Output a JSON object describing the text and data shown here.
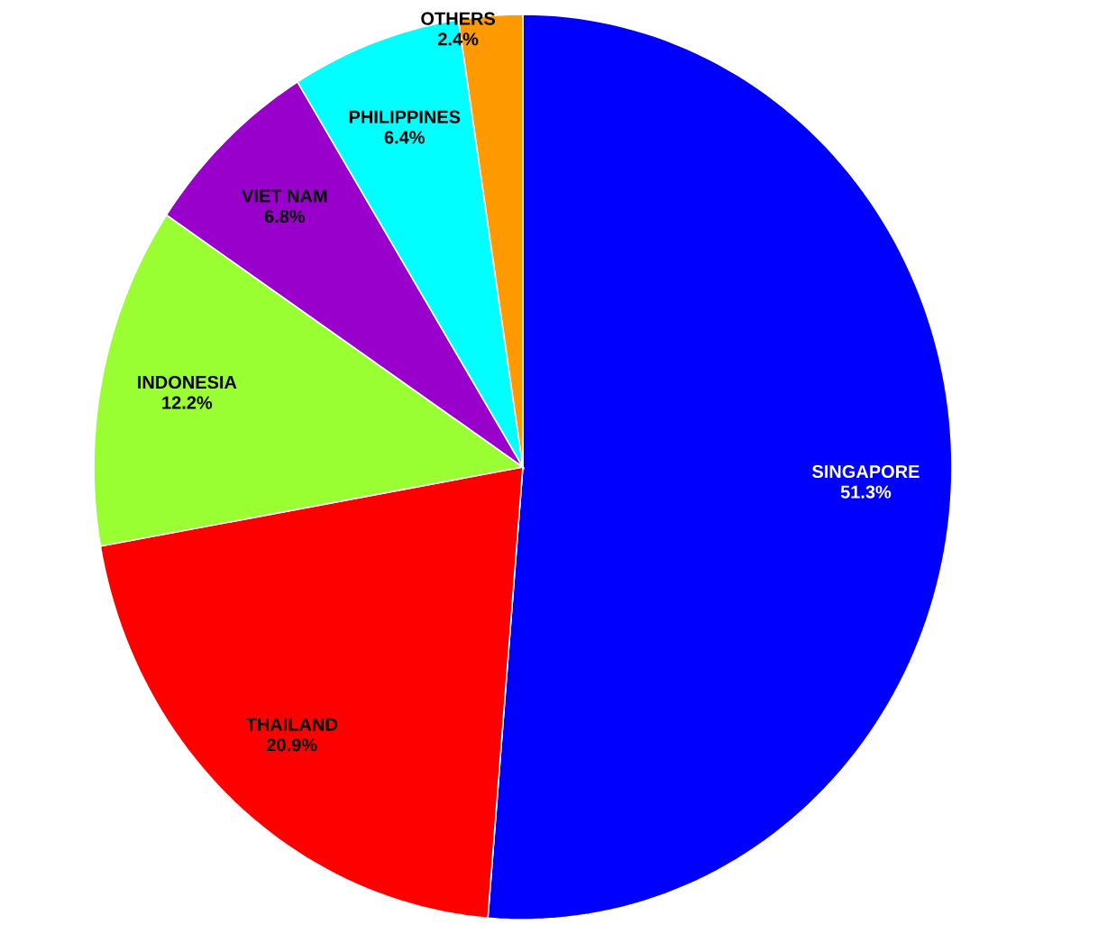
{
  "chart_data": {
    "type": "pie",
    "categories": [
      "SINGAPORE",
      "THAILAND",
      "INDONESIA",
      "VIET NAM",
      "PHILIPPINES",
      "OTHERS"
    ],
    "values": [
      51.3,
      20.9,
      12.2,
      6.8,
      6.4,
      2.4
    ],
    "colors": [
      "#0000ff",
      "#ff0000",
      "#99ff33",
      "#9900cc",
      "#00ffff",
      "#ff9900"
    ],
    "value_labels": [
      "51.3%",
      "20.9%",
      "12.2%",
      "6.8%",
      "6.4%",
      "2.4%"
    ]
  }
}
